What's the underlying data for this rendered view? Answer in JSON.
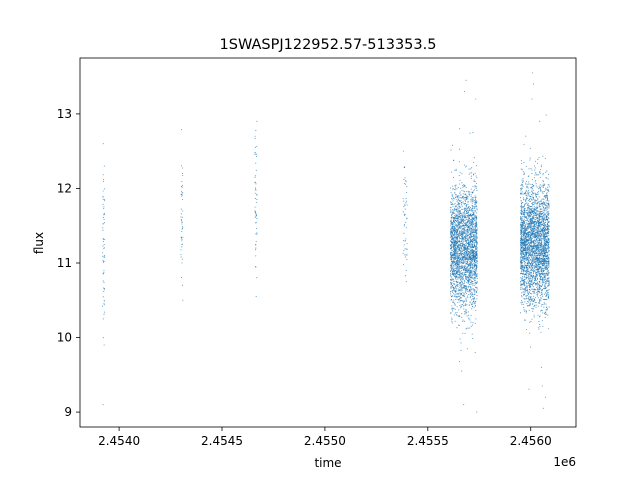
{
  "chart_data": {
    "type": "scatter",
    "title": "1SWASPJ122952.57-513353.5",
    "xlabel": "time",
    "ylabel": "flux",
    "x_offset_label": "1e6",
    "xlim": [
      2.45381,
      2.45622
    ],
    "ylim": [
      8.8,
      13.75
    ],
    "x_ticks": [
      2.454,
      2.4545,
      2.455,
      2.4555,
      2.456
    ],
    "x_tick_labels": [
      "2.4540",
      "2.4545",
      "2.4550",
      "2.4555",
      "2.4560"
    ],
    "y_ticks": [
      9,
      10,
      11,
      12,
      13
    ],
    "y_tick_labels": [
      "9",
      "10",
      "11",
      "12",
      "13"
    ],
    "grid": false,
    "marker_color": "#1f77b4",
    "series": [
      {
        "clusters": [
          {
            "x_range": [
              2.45392,
              2.45393
            ],
            "y_center": 11.3,
            "y_spread": 0.6,
            "count": 60,
            "y_extremes": [
              9.1,
              9.9,
              10.25,
              12.3,
              12.6
            ]
          },
          {
            "x_range": [
              2.4543,
              2.45431
            ],
            "y_center": 11.6,
            "y_spread": 0.5,
            "count": 45,
            "y_extremes": [
              10.5,
              10.7,
              11.05,
              12.2
            ]
          },
          {
            "x_range": [
              2.45466,
              2.45467
            ],
            "y_center": 11.8,
            "y_spread": 0.5,
            "count": 50,
            "y_extremes": [
              10.55,
              10.95,
              11.2,
              12.7,
              12.9
            ]
          },
          {
            "x_range": [
              2.45538,
              2.4554
            ],
            "y_center": 11.6,
            "y_spread": 0.5,
            "count": 50,
            "y_extremes": [
              10.75,
              10.9,
              12.5
            ]
          },
          {
            "x_range": [
              2.45561,
              2.45574
            ],
            "y_center": 11.2,
            "y_spread": 0.45,
            "count": 2600,
            "y_extremes": [
              9.0,
              9.1,
              9.55,
              9.8,
              12.8,
              13.2,
              13.3,
              13.45
            ]
          },
          {
            "x_range": [
              2.45595,
              2.45609
            ],
            "y_center": 11.25,
            "y_spread": 0.45,
            "count": 3000,
            "y_extremes": [
              9.05,
              9.2,
              9.35,
              9.6,
              12.9,
              13.2,
              13.4,
              13.55
            ]
          }
        ]
      }
    ]
  }
}
